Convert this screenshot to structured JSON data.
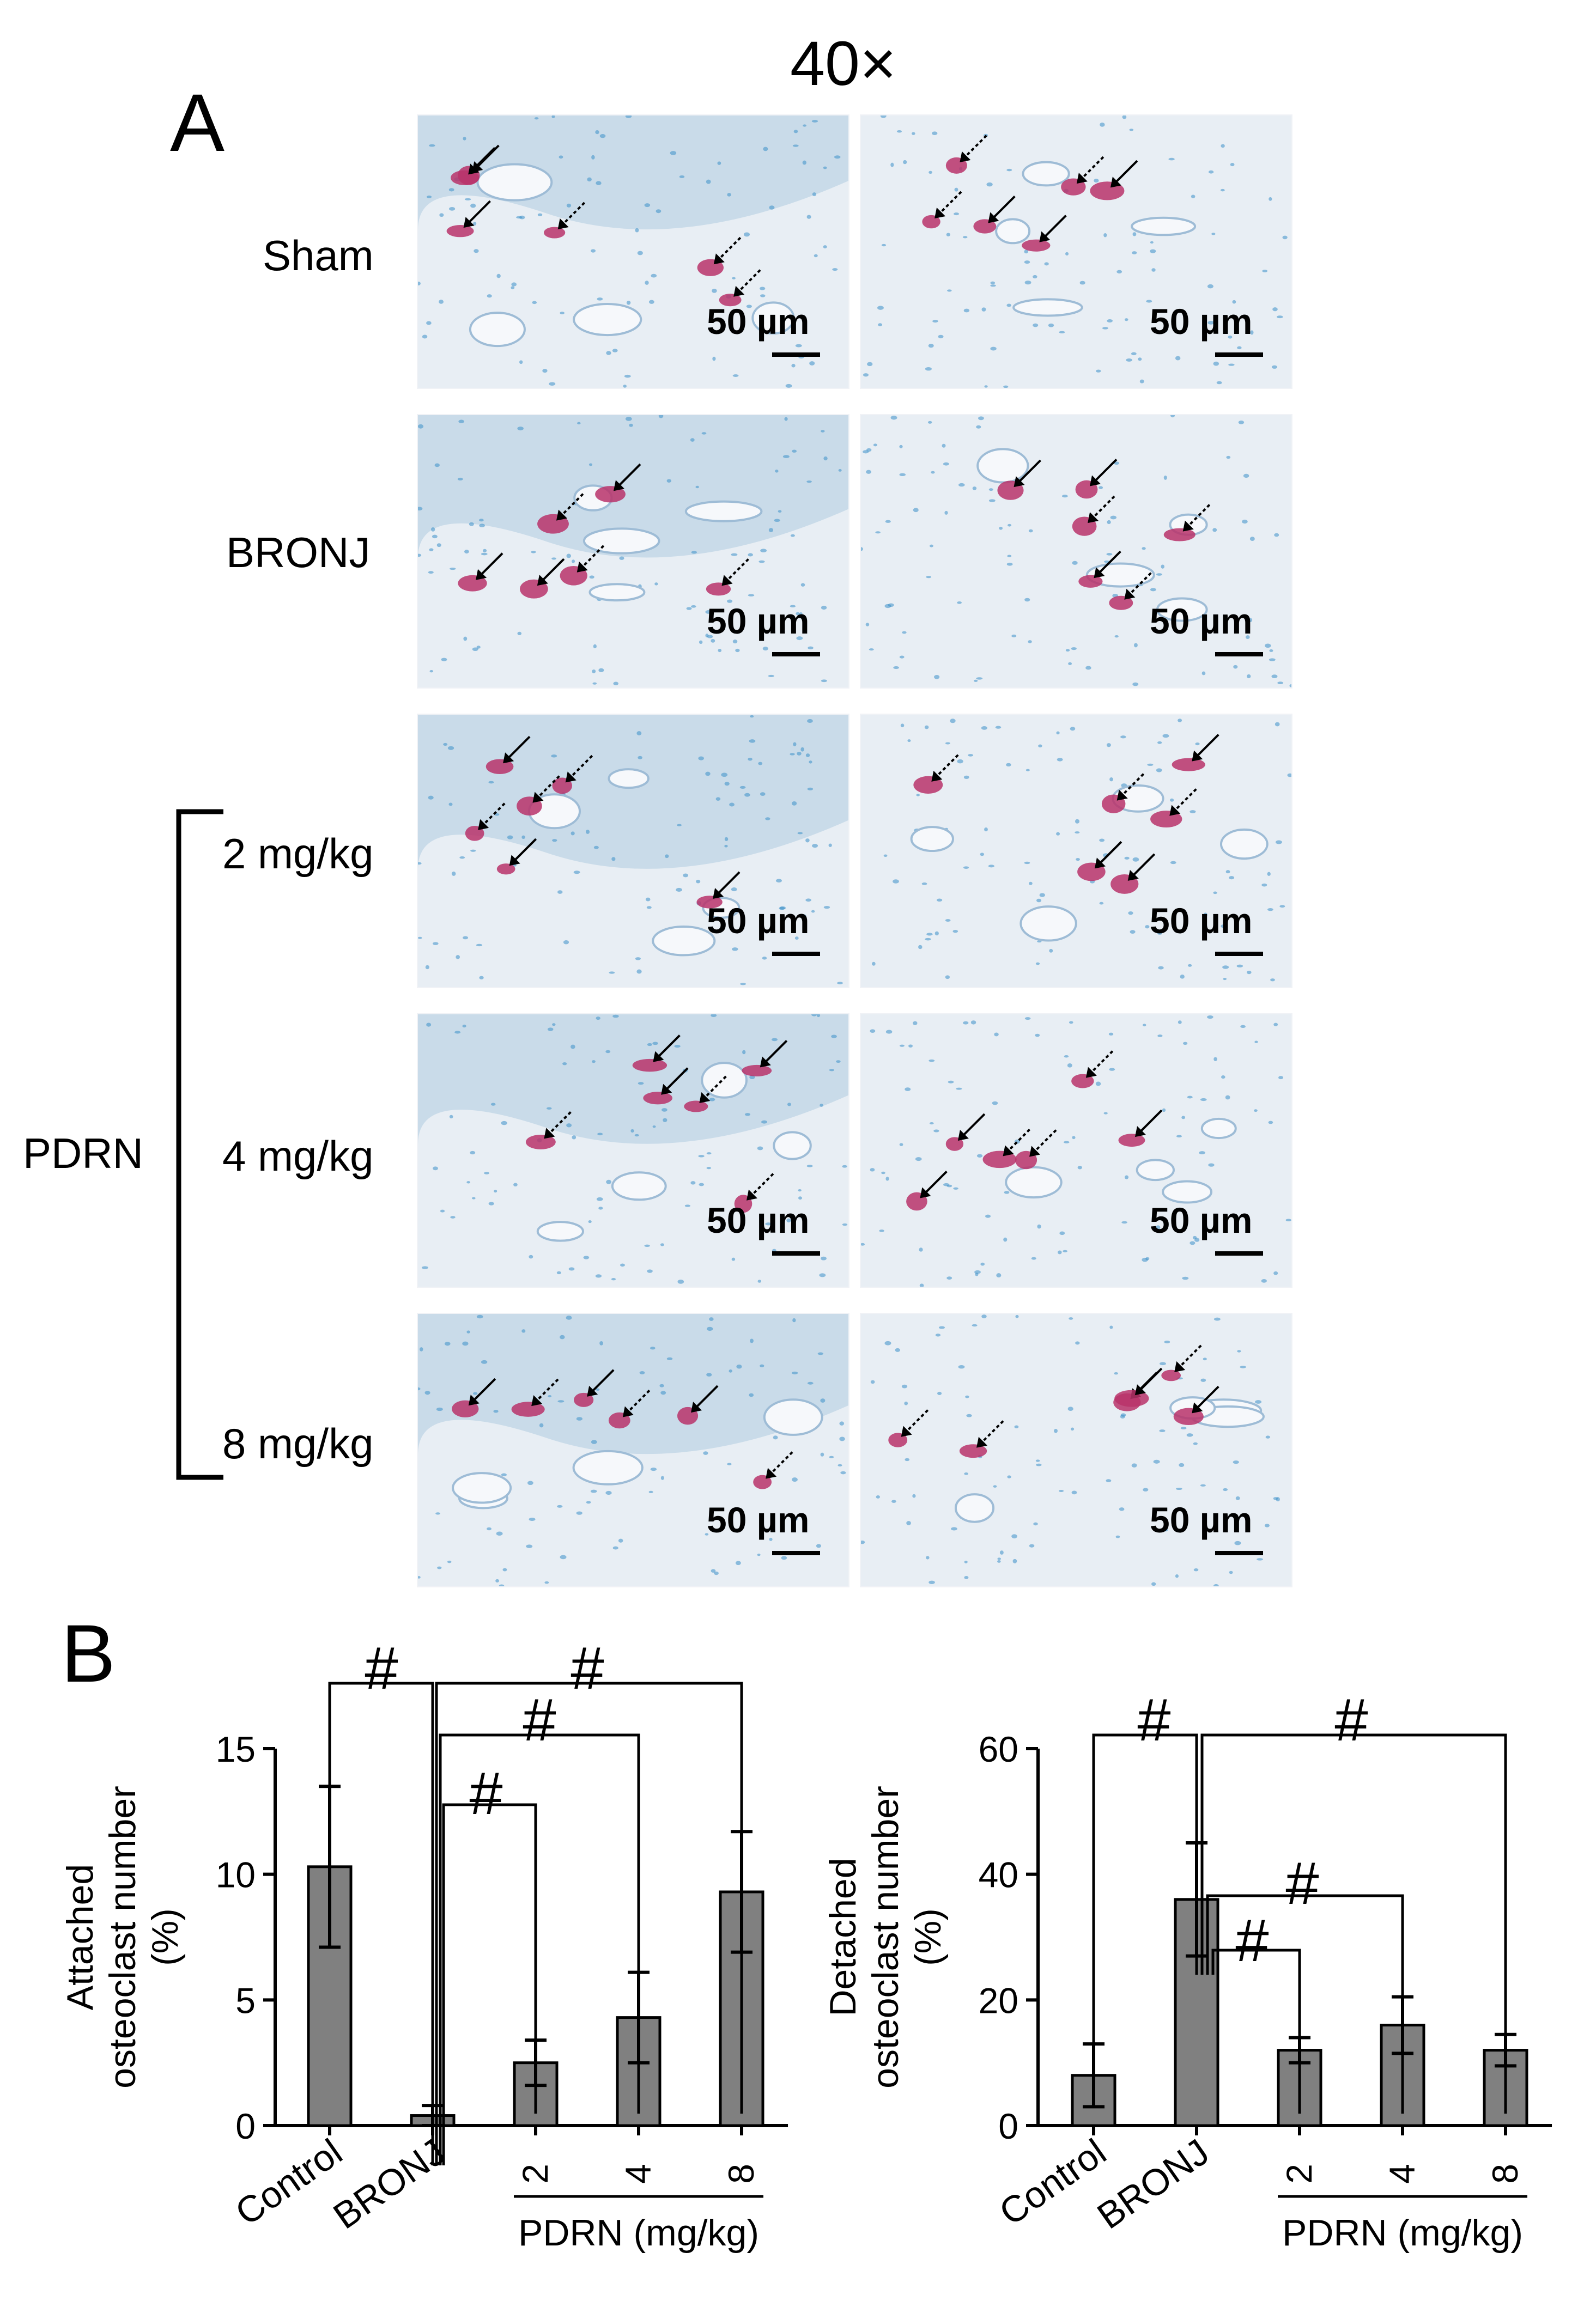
{
  "panel_a": {
    "letter": "A",
    "magnification": "40×",
    "rows": [
      {
        "label": "Sham"
      },
      {
        "label": "BRONJ"
      },
      {
        "label": "2 mg/kg"
      },
      {
        "label": "4 mg/kg"
      },
      {
        "label": "8 mg/kg"
      }
    ],
    "group_label": "PDRN",
    "scale_bar_label": "50 µm"
  },
  "panel_b": {
    "letter": "B",
    "significance_marker": "#"
  },
  "colors": {
    "bar_fill": "#808080",
    "stain_magenta": "#b8336a",
    "tissue_background": "#e8eef4",
    "nuclei_blue": "#3a8fc9"
  },
  "chart_data": [
    {
      "type": "bar",
      "categories": [
        "Control",
        "BRONJ",
        "2",
        "4",
        "8"
      ],
      "values": [
        10.3,
        0.4,
        2.5,
        4.3,
        9.3
      ],
      "errors": [
        3.2,
        0.4,
        0.9,
        1.8,
        2.4
      ],
      "ylabel": [
        "Attached",
        "osteoclast number",
        "(%)"
      ],
      "group_label": "PDRN (mg/kg)",
      "ylim": [
        0,
        15
      ],
      "yticks": [
        "0",
        "5",
        "10",
        "15"
      ],
      "significance": "#"
    },
    {
      "type": "bar",
      "categories": [
        "Control",
        "BRONJ",
        "2",
        "4",
        "8"
      ],
      "values": [
        8,
        36,
        12,
        16,
        12
      ],
      "errors": [
        5,
        9,
        2,
        4.5,
        2.5
      ],
      "ylabel": [
        "Detached",
        "osteoclast number",
        "(%)"
      ],
      "group_label": "PDRN (mg/kg)",
      "ylim": [
        0,
        60
      ],
      "yticks": [
        "0",
        "20",
        "40",
        "60"
      ],
      "significance": "#"
    }
  ]
}
